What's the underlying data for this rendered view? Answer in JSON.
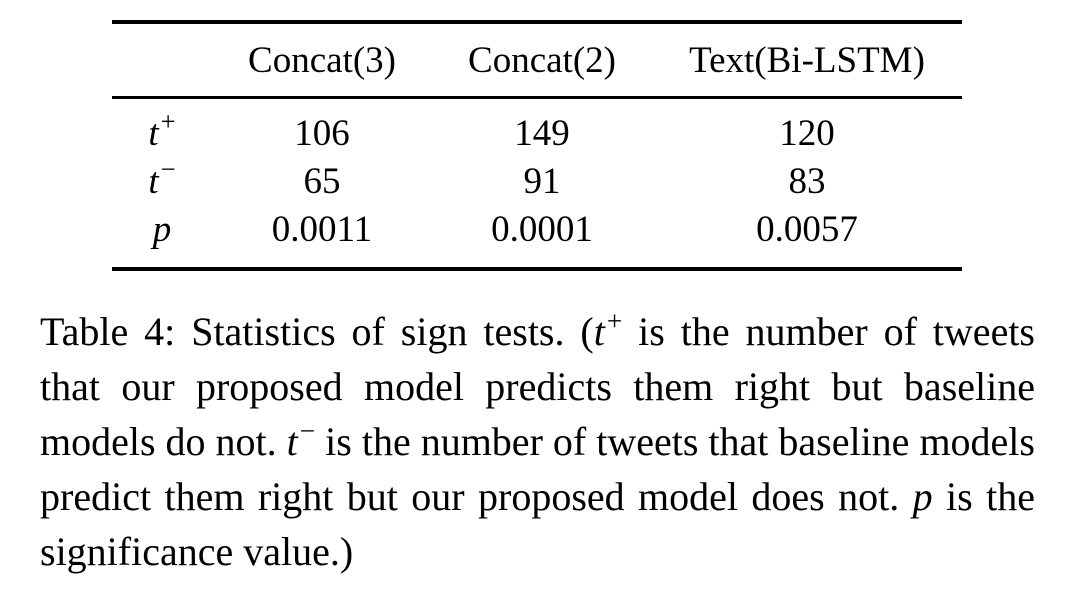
{
  "table": {
    "columns": [
      "Concat(3)",
      "Concat(2)",
      "Text(Bi-LSTM)"
    ],
    "rows": [
      {
        "label_base": "t",
        "label_sup": "+",
        "values": [
          "106",
          "149",
          "120"
        ]
      },
      {
        "label_base": "t",
        "label_sup": "−",
        "values": [
          "65",
          "91",
          "83"
        ]
      },
      {
        "label_base": "p",
        "label_sup": "",
        "values": [
          "0.0011",
          "0.0001",
          "0.0057"
        ]
      }
    ]
  },
  "caption": {
    "part1": "Table 4: Statistics of sign tests. (",
    "var_t": "t",
    "sup_plus": "+",
    "part2": " is the number of tweets that our proposed model predicts them right but baseline models do not. ",
    "sup_minus": "−",
    "part3": " is the number of tweets that baseline models predict them right but our proposed model does not. ",
    "var_p": "p",
    "part4": " is the significance value.)"
  }
}
